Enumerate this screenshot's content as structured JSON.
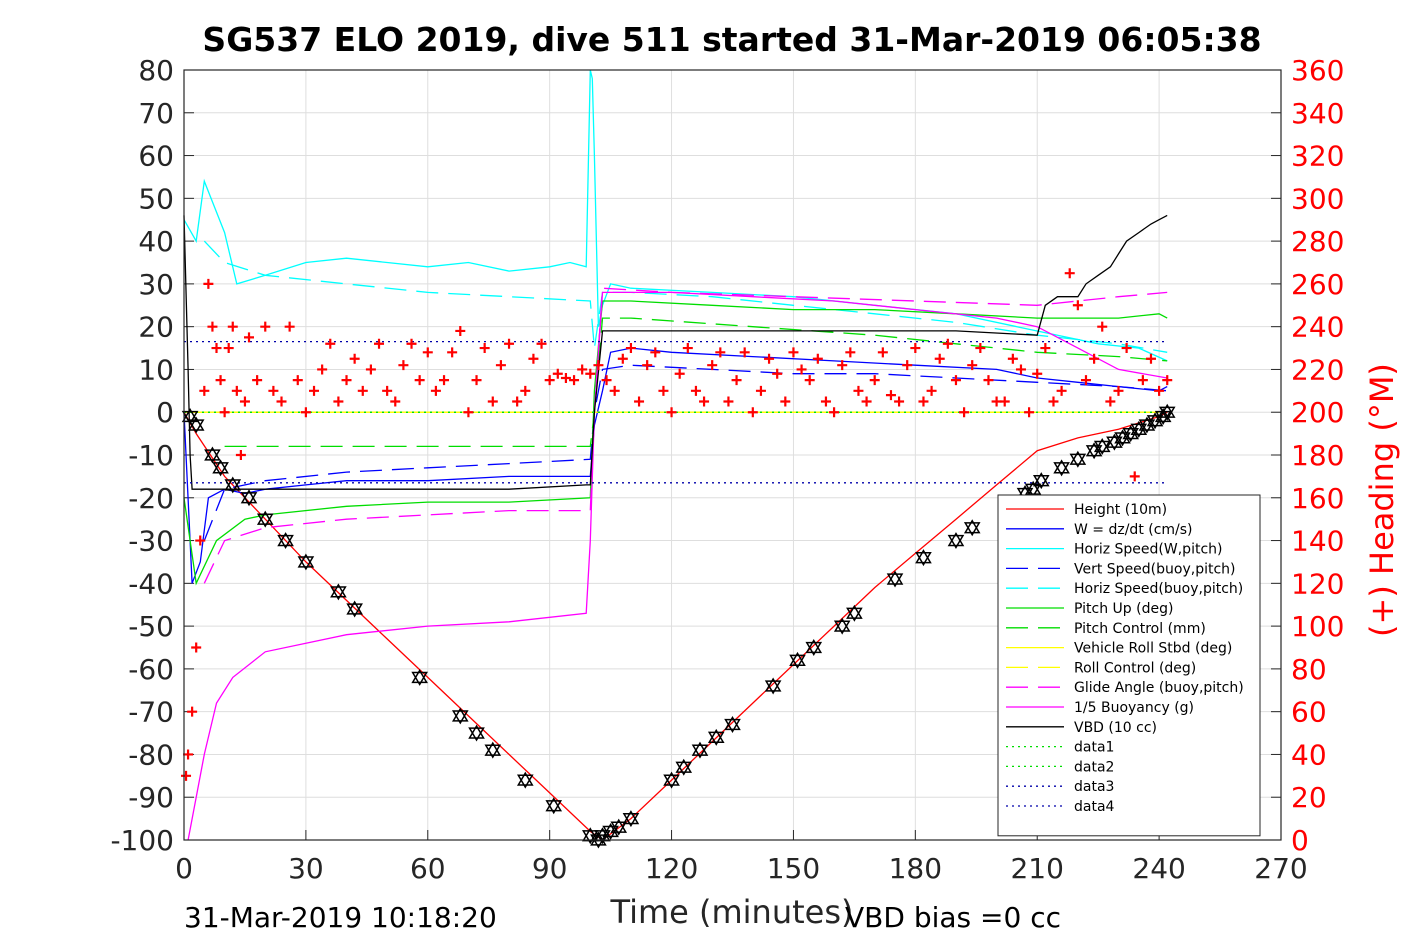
{
  "chart_data": {
    "type": "line",
    "title": "SG537 ELO 2019, dive 511 started 31-Mar-2019 06:05:38",
    "xlabel": "Time (minutes)",
    "ylabel": "",
    "y2label": "(+) Heading (°M)",
    "xlim": [
      0,
      270
    ],
    "ylim": [
      -100,
      80
    ],
    "y2lim": [
      0,
      360
    ],
    "xticks": [
      "0",
      "30",
      "60",
      "90",
      "120",
      "150",
      "180",
      "210",
      "240",
      "270"
    ],
    "yticks": [
      "80",
      "70",
      "60",
      "50",
      "40",
      "30",
      "20",
      "10",
      "0",
      "-10",
      "-20",
      "-30",
      "-40",
      "-50",
      "-60",
      "-70",
      "-80",
      "-90",
      "-100"
    ],
    "y2ticks": [
      "360",
      "340",
      "320",
      "300",
      "280",
      "260",
      "240",
      "220",
      "200",
      "180",
      "160",
      "140",
      "120",
      "100",
      "80",
      "60",
      "40",
      "20",
      "0"
    ],
    "grid": true,
    "legend_position": "bottom-right",
    "footer_left": "31-Mar-2019 10:18:20",
    "footer_right": "VBD bias =0 cc",
    "series": [
      {
        "name": "Height (10m)",
        "color": "#ff0000",
        "style": "solid",
        "x": [
          0,
          3,
          10,
          20,
          30,
          40,
          50,
          60,
          70,
          80,
          90,
          100,
          103,
          110,
          120,
          130,
          140,
          150,
          160,
          170,
          180,
          190,
          200,
          210,
          220,
          230,
          240,
          242
        ],
        "y": [
          0,
          -5,
          -15,
          -25,
          -35,
          -44,
          -53,
          -62,
          -71,
          -80,
          -89,
          -98,
          -100,
          -95,
          -86,
          -77,
          -68,
          -59,
          -50,
          -41,
          -33,
          -25,
          -17,
          -9,
          -6,
          -4,
          -1,
          0
        ]
      },
      {
        "name": "W = dz/dt (cm/s)",
        "color": "#0000ff",
        "style": "solid",
        "x": [
          0,
          2,
          4,
          6,
          10,
          15,
          20,
          30,
          40,
          60,
          80,
          95,
          100,
          101,
          103,
          105,
          110,
          120,
          140,
          160,
          180,
          200,
          210,
          220,
          230,
          240,
          242
        ],
        "y": [
          0,
          -40,
          -35,
          -20,
          -18,
          -19,
          -18,
          -17,
          -16,
          -16,
          -15,
          -15,
          -15,
          -3,
          5,
          14,
          15,
          14,
          13,
          12,
          11,
          10,
          8,
          7,
          6,
          5,
          6
        ]
      },
      {
        "name": "Horiz Speed(W,pitch)",
        "color": "#00ffff",
        "style": "solid",
        "x": [
          0,
          3,
          5,
          10,
          13,
          20,
          30,
          40,
          50,
          60,
          70,
          80,
          90,
          95,
          99,
          100,
          100.5,
          101,
          102,
          103,
          105,
          110,
          130,
          150,
          170,
          190,
          205,
          215,
          225,
          235,
          242
        ],
        "y": [
          45,
          40,
          54,
          42,
          30,
          32,
          35,
          36,
          35,
          34,
          35,
          33,
          34,
          35,
          34,
          80,
          78,
          60,
          20,
          25,
          30,
          29,
          28,
          27,
          25,
          23,
          20,
          18,
          16,
          15,
          12
        ]
      },
      {
        "name": "Vert Speed(buoy,pitch)",
        "color": "#0000ff",
        "style": "dashed",
        "x": [
          5,
          10,
          20,
          40,
          60,
          80,
          100,
          101,
          103,
          110,
          130,
          150,
          170,
          190,
          210,
          230,
          242
        ],
        "y": [
          -30,
          -18,
          -16,
          -14,
          -13,
          -12,
          -11,
          0,
          10,
          11,
          10,
          9,
          9,
          8,
          7,
          6,
          5
        ]
      },
      {
        "name": "Horiz Speed(buoy,pitch)",
        "color": "#00ffff",
        "style": "dashed",
        "x": [
          5,
          10,
          20,
          40,
          60,
          80,
          100,
          101,
          103,
          110,
          130,
          150,
          170,
          190,
          210,
          230,
          242
        ],
        "y": [
          40,
          35,
          32,
          30,
          28,
          27,
          26,
          15,
          28,
          28,
          27,
          25,
          23,
          21,
          18,
          16,
          14
        ]
      },
      {
        "name": "Pitch Up (deg)",
        "color": "#00dd00",
        "style": "solid",
        "x": [
          0,
          3,
          8,
          15,
          20,
          40,
          60,
          80,
          100,
          101,
          103,
          110,
          130,
          150,
          170,
          190,
          210,
          220,
          230,
          240,
          242
        ],
        "y": [
          -20,
          -40,
          -30,
          -25,
          -24,
          -22,
          -21,
          -21,
          -20,
          5,
          26,
          26,
          25,
          24,
          24,
          23,
          22,
          22,
          22,
          23,
          22
        ]
      },
      {
        "name": "Pitch Control (mm)",
        "color": "#00dd00",
        "style": "dashed",
        "x": [
          10,
          20,
          40,
          60,
          80,
          100,
          101,
          103,
          110,
          140,
          170,
          190,
          210,
          230,
          242
        ],
        "y": [
          -8,
          -8,
          -8,
          -8,
          -8,
          -8,
          0,
          22,
          22,
          20,
          18,
          16,
          14,
          13,
          12
        ]
      },
      {
        "name": "Vehicle Roll Stbd (deg)",
        "color": "#ffff00",
        "style": "solid",
        "x": [
          0,
          10,
          20,
          40,
          60,
          80,
          100,
          120,
          140,
          160,
          180,
          200,
          220,
          240
        ],
        "y": [
          0,
          0,
          0,
          0,
          0,
          0,
          0,
          0,
          0,
          0,
          0,
          0,
          0,
          0
        ]
      },
      {
        "name": "Roll Control (deg)",
        "color": "#ffff00",
        "style": "dashed",
        "x": [
          0,
          20,
          40,
          60,
          80,
          100,
          120,
          140,
          160,
          180,
          200,
          220,
          240
        ],
        "y": [
          0,
          0,
          0,
          0,
          0,
          0,
          0,
          0,
          0,
          0,
          0,
          0,
          0
        ]
      },
      {
        "name": "Glide Angle (buoy,pitch)",
        "color": "#ff00ff",
        "style": "dashed",
        "x": [
          5,
          10,
          20,
          40,
          60,
          80,
          100,
          101,
          103,
          120,
          150,
          180,
          210,
          230,
          242
        ],
        "y": [
          -40,
          -30,
          -27,
          -25,
          -24,
          -23,
          -23,
          0,
          29,
          28,
          27,
          26,
          25,
          27,
          28
        ]
      },
      {
        "name": "1/5 Buoyancy (g)",
        "color": "#ff00ff",
        "style": "solid",
        "x": [
          1,
          3,
          5,
          8,
          12,
          20,
          30,
          40,
          60,
          80,
          99,
          100,
          101,
          103,
          120,
          140,
          160,
          180,
          200,
          210,
          220,
          230,
          242
        ],
        "y": [
          -100,
          -90,
          -80,
          -68,
          -62,
          -56,
          -54,
          -52,
          -50,
          -49,
          -47,
          -30,
          0,
          28,
          28,
          27,
          26,
          24,
          22,
          20,
          15,
          10,
          8
        ]
      },
      {
        "name": "VBD (10 cc)",
        "color": "#000000",
        "style": "solid",
        "x": [
          0,
          1,
          1.5,
          2,
          5,
          20,
          40,
          60,
          80,
          99,
          100,
          101,
          103,
          105,
          130,
          160,
          190,
          210,
          212,
          215,
          220,
          222,
          225,
          228,
          230,
          232,
          235,
          238,
          240,
          242
        ],
        "y": [
          46,
          10,
          -10,
          -18,
          -18,
          -18,
          -18,
          -18,
          -18,
          -17,
          -17,
          0,
          19,
          19,
          19,
          19,
          19,
          18,
          25,
          27,
          27,
          30,
          32,
          34,
          37,
          40,
          42,
          44,
          45,
          46
        ]
      },
      {
        "name": "data1",
        "color": "#00dd00",
        "style": "dotted",
        "x": [
          0,
          242
        ],
        "y": [
          0,
          0
        ]
      },
      {
        "name": "data2",
        "color": "#00dd00",
        "style": "dotted",
        "x": [
          0,
          242
        ],
        "y": [
          0,
          0
        ]
      },
      {
        "name": "data3",
        "color": "#0000aa",
        "style": "dotted",
        "x": [
          0,
          242
        ],
        "y": [
          16.5,
          16.5
        ]
      },
      {
        "name": "data4",
        "color": "#0000aa",
        "style": "dotted",
        "x": [
          0,
          242
        ],
        "y": [
          -16.5,
          -16.5
        ]
      }
    ],
    "heading_series": {
      "color": "#ff0000",
      "marker": "+",
      "axis": "right",
      "x": [
        0.5,
        1,
        2,
        3,
        4,
        5,
        6,
        7,
        8,
        9,
        10,
        11,
        12,
        13,
        14,
        15,
        16,
        18,
        20,
        22,
        24,
        26,
        28,
        30,
        32,
        34,
        36,
        38,
        40,
        42,
        44,
        46,
        48,
        50,
        52,
        54,
        56,
        58,
        60,
        62,
        64,
        66,
        68,
        70,
        72,
        74,
        76,
        78,
        80,
        82,
        84,
        86,
        88,
        90,
        92,
        94,
        96,
        98,
        100,
        102,
        104,
        106,
        108,
        110,
        112,
        114,
        116,
        118,
        120,
        122,
        124,
        126,
        128,
        130,
        132,
        134,
        136,
        138,
        140,
        142,
        144,
        146,
        148,
        150,
        152,
        154,
        156,
        158,
        160,
        162,
        164,
        166,
        168,
        170,
        172,
        174,
        176,
        178,
        180,
        182,
        184,
        186,
        188,
        190,
        192,
        194,
        196,
        198,
        200,
        202,
        204,
        206,
        208,
        210,
        212,
        214,
        216,
        218,
        220,
        222,
        224,
        226,
        228,
        230,
        232,
        234,
        236,
        238,
        240,
        242
      ],
      "y": [
        30,
        40,
        60,
        90,
        140,
        210,
        260,
        240,
        230,
        215,
        200,
        230,
        240,
        210,
        180,
        205,
        235,
        215,
        240,
        210,
        205,
        240,
        215,
        200,
        210,
        220,
        232,
        205,
        215,
        225,
        210,
        220,
        232,
        210,
        205,
        222,
        232,
        215,
        228,
        210,
        215,
        228,
        238,
        200,
        215,
        230,
        205,
        222,
        232,
        205,
        210,
        225,
        232,
        215,
        218,
        216,
        215,
        220,
        218,
        222,
        215,
        210,
        225,
        230,
        205,
        222,
        228,
        210,
        200,
        218,
        230,
        210,
        205,
        222,
        228,
        205,
        215,
        228,
        200,
        210,
        225,
        218,
        205,
        228,
        220,
        215,
        225,
        205,
        200,
        222,
        228,
        210,
        205,
        215,
        228,
        208,
        205,
        222,
        230,
        205,
        210,
        225,
        232,
        215,
        200,
        222,
        230,
        215,
        205,
        205,
        225,
        220,
        200,
        218,
        230,
        205,
        210,
        265,
        250,
        215,
        225,
        240,
        205,
        210,
        230,
        170,
        215,
        225,
        210,
        215
      ]
    },
    "depth_markers": {
      "marker": "triangle-hexagram",
      "color": "#000000",
      "x": [
        1.5,
        3,
        7,
        9,
        12,
        16,
        20,
        25,
        30,
        38,
        42,
        58,
        68,
        72,
        76,
        84,
        91,
        100,
        102,
        103,
        105,
        107,
        110,
        120,
        123,
        127,
        131,
        135,
        145,
        151,
        155,
        162,
        165,
        175,
        182,
        190,
        194,
        207,
        209,
        211,
        216,
        220,
        224,
        226,
        229,
        231,
        233,
        235,
        237,
        239,
        241,
        242
      ],
      "y": [
        -1,
        -3,
        -10,
        -13,
        -17,
        -20,
        -25,
        -30,
        -35,
        -42,
        -46,
        -62,
        -71,
        -75,
        -79,
        -86,
        -92,
        -99,
        -100,
        -99,
        -98,
        -97,
        -95,
        -86,
        -83,
        -79,
        -76,
        -73,
        -64,
        -58,
        -55,
        -50,
        -47,
        -39,
        -34,
        -30,
        -27,
        -19,
        -18,
        -16,
        -13,
        -11,
        -9,
        -8,
        -7,
        -6,
        -5,
        -4,
        -3,
        -2,
        -1,
        0
      ]
    }
  }
}
